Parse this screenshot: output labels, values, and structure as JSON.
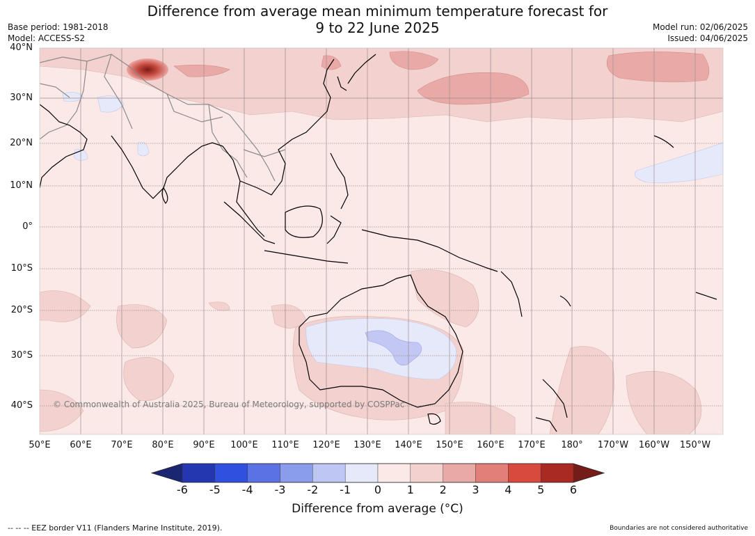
{
  "header": {
    "title_line1": "Difference from average mean minimum temperature forecast for",
    "title_line2": "9 to 22 June 2025",
    "base_period": "Base period: 1981-2018",
    "model": "Model: ACCESS-S2",
    "model_run": "Model run: 02/06/2025",
    "issued": "Issued: 04/06/2025"
  },
  "map": {
    "lat_labels": [
      "40°N",
      "30°N",
      "20°N",
      "10°N",
      "0°",
      "10°S",
      "20°S",
      "30°S",
      "40°S"
    ],
    "lon_labels": [
      "50°E",
      "60°E",
      "70°E",
      "80°E",
      "90°E",
      "100°E",
      "110°E",
      "120°E",
      "130°E",
      "140°E",
      "150°E",
      "160°E",
      "170°E",
      "180°",
      "170°W",
      "160°W",
      "150°W"
    ],
    "copyright": "© Commonwealth of Australia 2025, Bureau of Meteorology, supported by COSPPac",
    "colors": {
      "background_anomaly": "#fbe9e7",
      "warm_1_2": "#f3d1cf",
      "warm_2_3": "#e8a9a7",
      "cool_0_m1": "#e6e9fa",
      "cool_m1_m2": "#c2c8f3"
    }
  },
  "colorbar": {
    "label": "Difference from average (°C)",
    "ticks": [
      "-6",
      "-5",
      "-4",
      "-3",
      "-2",
      "-1",
      "0",
      "1",
      "2",
      "3",
      "4",
      "5",
      "6"
    ],
    "colors": [
      "#1b2673",
      "#2537b0",
      "#3050e0",
      "#5a72e3",
      "#8a9cec",
      "#bec6f3",
      "#e6e9fa",
      "#fbe9e7",
      "#f3d1cf",
      "#e9aaa7",
      "#e27f78",
      "#d94a3e",
      "#a82a23",
      "#741c18"
    ]
  },
  "footer": {
    "eez_note": "--  --  -- EEZ border V11 (Flanders Marine Institute, 2019).",
    "boundaries_note": "Boundaries are not considered authoritative"
  }
}
